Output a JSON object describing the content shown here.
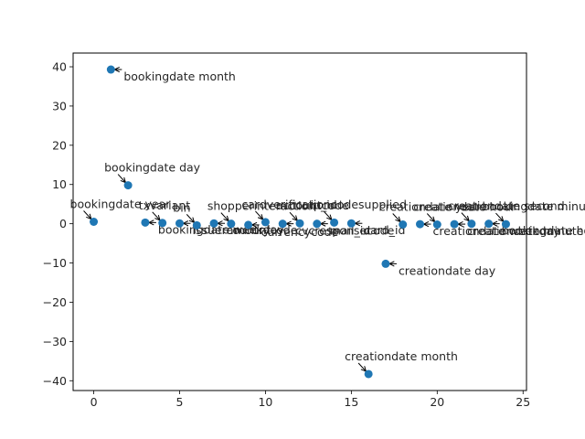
{
  "chart_data": {
    "type": "scatter",
    "title": "",
    "xlabel": "",
    "ylabel": "",
    "xlim": [
      -1.2,
      25.2
    ],
    "ylim": [
      -42.5,
      43.5
    ],
    "xticks": [
      0,
      5,
      10,
      15,
      20,
      25
    ],
    "yticks": [
      -40,
      -30,
      -20,
      -10,
      0,
      10,
      20,
      30,
      40
    ],
    "grid": false,
    "legend": "none",
    "marker_color": "#1f77b4",
    "points": [
      {
        "x": 0,
        "y": 0.5,
        "label": "bookingdate year"
      },
      {
        "x": 1,
        "y": 39.3,
        "label": "bookingdate month"
      },
      {
        "x": 2,
        "y": 9.8,
        "label": "bookingdate day"
      },
      {
        "x": 3,
        "y": 0.3,
        "label": "bookingdate weekday"
      },
      {
        "x": 4,
        "y": 0.2,
        "label": "txvariant"
      },
      {
        "x": 5,
        "y": 0.1,
        "label": "issuercountrycode"
      },
      {
        "x": 6,
        "y": -0.4,
        "label": "bin"
      },
      {
        "x": 7,
        "y": 0.1,
        "label": "amount"
      },
      {
        "x": 8,
        "y": 0.0,
        "label": "shopperinteraction"
      },
      {
        "x": 9,
        "y": -0.3,
        "label": "currencycode"
      },
      {
        "x": 10,
        "y": 0.4,
        "label": "cardverificationcodesupplied"
      },
      {
        "x": 11,
        "y": 0.0,
        "label": "cvcresponsecode"
      },
      {
        "x": 12,
        "y": 0.1,
        "label": "accountcode"
      },
      {
        "x": 13,
        "y": 0.0,
        "label": "mail_id"
      },
      {
        "x": 14,
        "y": 0.3,
        "label": "ip_id"
      },
      {
        "x": 15,
        "y": 0.1,
        "label": "card_id"
      },
      {
        "x": 16,
        "y": -38.3,
        "label": "creationdate month"
      },
      {
        "x": 17,
        "y": -10.2,
        "label": "creationdate day"
      },
      {
        "x": 18,
        "y": -0.2,
        "label": "creationdate year"
      },
      {
        "x": 19,
        "y": -0.1,
        "label": "creationdate weekday"
      },
      {
        "x": 20,
        "y": -0.2,
        "label": "creationdate hour"
      },
      {
        "x": 21,
        "y": -0.1,
        "label": "creationdate minute"
      },
      {
        "x": 22,
        "y": 0.0,
        "label": "creationdate second"
      },
      {
        "x": 23,
        "y": 0.0,
        "label": "bookingdate hour"
      },
      {
        "x": 24,
        "y": -0.1,
        "label": "bookingdate minute"
      }
    ]
  }
}
